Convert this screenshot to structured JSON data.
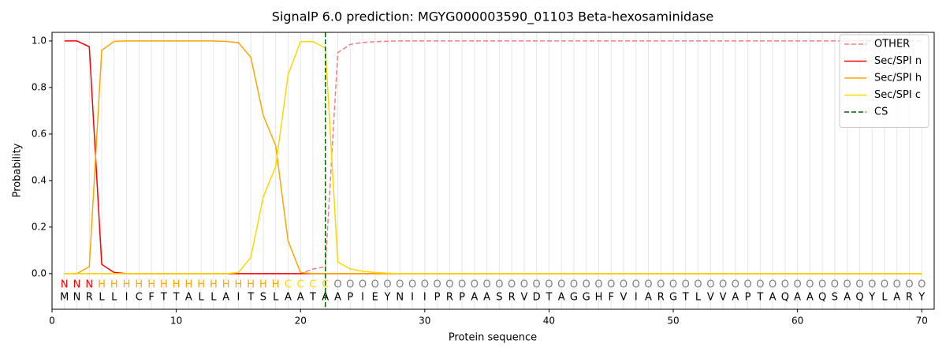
{
  "chart_data": {
    "type": "line",
    "title": "SignalP 6.0 prediction: MGYG000003590_01103 Beta-hexosaminidase",
    "xlabel": "Protein sequence",
    "ylabel": "Probability",
    "x": [
      1,
      2,
      3,
      4,
      5,
      6,
      7,
      8,
      9,
      10,
      11,
      12,
      13,
      14,
      15,
      16,
      17,
      18,
      19,
      20,
      21,
      22,
      23,
      24,
      25,
      26,
      27,
      28,
      29,
      30,
      31,
      32,
      33,
      34,
      35,
      36,
      37,
      38,
      39,
      40,
      41,
      42,
      43,
      44,
      45,
      46,
      47,
      48,
      49,
      50,
      51,
      52,
      53,
      54,
      55,
      56,
      57,
      58,
      59,
      60,
      61,
      62,
      63,
      64,
      65,
      66,
      67,
      68,
      69,
      70
    ],
    "xlim": [
      0,
      71
    ],
    "ylim": [
      -0.153,
      1.037
    ],
    "xticks": [
      0,
      10,
      20,
      30,
      40,
      50,
      60,
      70
    ],
    "yticks": [
      {
        "value": 0,
        "label": "0.0"
      },
      0.2,
      0.4,
      0.6,
      0.8,
      {
        "value": 1,
        "label": "1.0"
      }
    ],
    "grid": true,
    "legend": "upper right",
    "series": [
      {
        "name": "OTHER",
        "color": "#f08080",
        "dashed": true,
        "values": [
          0,
          0,
          0,
          0,
          0,
          0,
          0,
          0,
          0,
          0,
          0,
          0,
          0,
          0,
          0,
          0,
          0,
          0,
          0,
          0,
          0.02,
          0.03,
          0.95,
          0.985,
          0.993,
          0.997,
          0.999,
          1,
          1,
          1,
          1,
          1,
          1,
          1,
          1,
          1,
          1,
          1,
          1,
          1,
          1,
          1,
          1,
          1,
          1,
          1,
          1,
          1,
          1,
          1,
          1,
          1,
          1,
          1,
          1,
          1,
          1,
          1,
          1,
          1,
          1,
          1,
          1,
          1,
          1,
          1,
          1,
          1,
          1,
          1
        ]
      },
      {
        "name": "Sec/SPI n",
        "color": "#ff0000",
        "values": [
          1,
          1,
          0.975,
          0.04,
          0.005,
          0,
          0,
          0,
          0,
          0,
          0,
          0,
          0,
          0,
          0,
          0,
          0,
          0,
          0,
          0,
          0,
          0,
          0,
          0,
          0,
          0,
          0,
          0,
          0,
          0,
          0,
          0,
          0,
          0,
          0,
          0,
          0,
          0,
          0,
          0,
          0,
          0,
          0,
          0,
          0,
          0,
          0,
          0,
          0,
          0,
          0,
          0,
          0,
          0,
          0,
          0,
          0,
          0,
          0,
          0,
          0,
          0,
          0,
          0,
          0,
          0,
          0,
          0,
          0,
          0
        ]
      },
      {
        "name": "Sec/SPI h",
        "color": "#ffa500",
        "values": [
          0,
          0,
          0.03,
          0.96,
          0.998,
          1,
          1,
          1,
          1,
          1,
          1,
          1,
          1,
          0.998,
          0.993,
          0.93,
          0.68,
          0.55,
          0.14,
          0.005,
          0,
          0,
          0,
          0,
          0,
          0,
          0,
          0,
          0,
          0,
          0,
          0,
          0,
          0,
          0,
          0,
          0,
          0,
          0,
          0,
          0,
          0,
          0,
          0,
          0,
          0,
          0,
          0,
          0,
          0,
          0,
          0,
          0,
          0,
          0,
          0,
          0,
          0,
          0,
          0,
          0,
          0,
          0,
          0,
          0,
          0,
          0,
          0,
          0,
          0
        ]
      },
      {
        "name": "Sec/SPI c",
        "color": "#ffd700",
        "values": [
          0,
          0,
          0,
          0,
          0,
          0,
          0,
          0,
          0,
          0,
          0,
          0,
          0,
          0,
          0.005,
          0.07,
          0.33,
          0.46,
          0.855,
          0.997,
          0.997,
          0.97,
          0.05,
          0.02,
          0.01,
          0.005,
          0.002,
          0,
          0,
          0,
          0,
          0,
          0,
          0,
          0,
          0,
          0,
          0,
          0,
          0,
          0,
          0,
          0,
          0,
          0,
          0,
          0,
          0,
          0,
          0,
          0,
          0,
          0,
          0,
          0,
          0,
          0,
          0,
          0,
          0,
          0,
          0,
          0,
          0,
          0,
          0,
          0,
          0,
          0,
          0
        ]
      }
    ],
    "cs": {
      "name": "CS",
      "x": 22,
      "color": "#006400"
    },
    "labels": [
      "N",
      "N",
      "N",
      "H",
      "H",
      "H",
      "H",
      "H",
      "H",
      "H",
      "H",
      "H",
      "H",
      "H",
      "H",
      "H",
      "H",
      "H",
      "C",
      "C",
      "C",
      "C",
      "O",
      "O",
      "O",
      "O",
      "O",
      "O",
      "O",
      "O",
      "O",
      "O",
      "O",
      "O",
      "O",
      "O",
      "O",
      "O",
      "O",
      "O",
      "O",
      "O",
      "O",
      "O",
      "O",
      "O",
      "O",
      "O",
      "O",
      "O",
      "O",
      "O",
      "O",
      "O",
      "O",
      "O",
      "O",
      "O",
      "O",
      "O",
      "O",
      "O",
      "O",
      "O",
      "O",
      "O",
      "O",
      "O",
      "O",
      "O"
    ],
    "label_colors": {
      "N": "#ff0000",
      "H": "#ffa500",
      "C": "#ffd700",
      "O": "#808080"
    },
    "sequence": [
      "M",
      "N",
      "R",
      "L",
      "L",
      "I",
      "C",
      "F",
      "T",
      "T",
      "A",
      "L",
      "L",
      "A",
      "I",
      "T",
      "S",
      "L",
      "A",
      "A",
      "T",
      "A",
      "A",
      "P",
      "I",
      "E",
      "Y",
      "N",
      "I",
      "I",
      "P",
      "R",
      "P",
      "A",
      "A",
      "S",
      "R",
      "V",
      "D",
      "T",
      "A",
      "G",
      "G",
      "H",
      "F",
      "V",
      "I",
      "A",
      "R",
      "G",
      "T",
      "L",
      "V",
      "V",
      "A",
      "P",
      "T",
      "A",
      "Q",
      "A",
      "A",
      "Q",
      "S",
      "A",
      "Q",
      "Y",
      "L",
      "A",
      "R",
      "Y"
    ]
  }
}
